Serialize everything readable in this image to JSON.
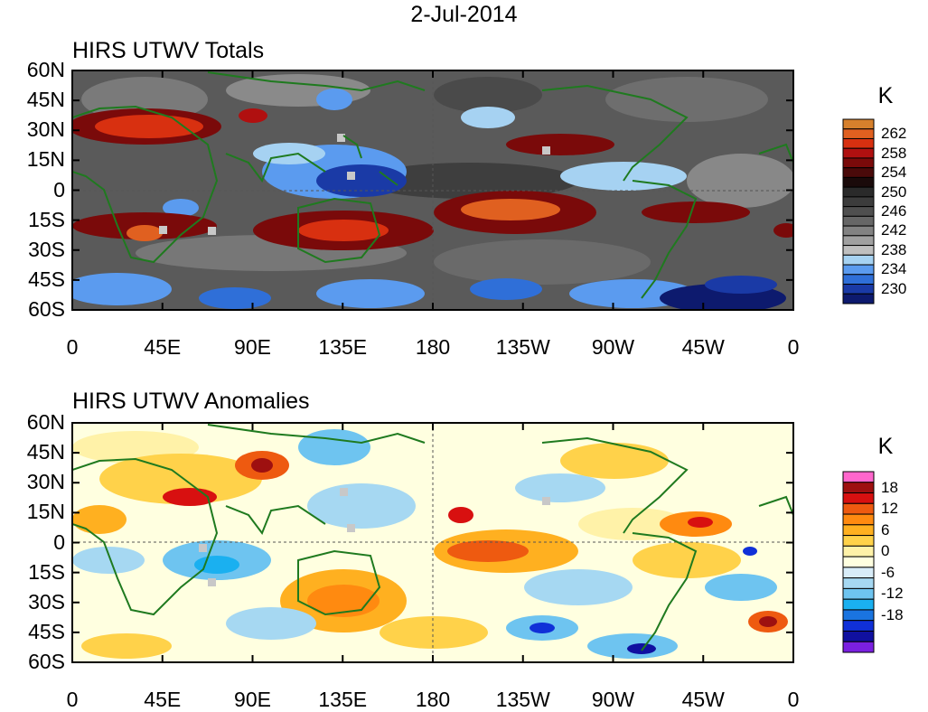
{
  "figure_title": "2-Jul-2014",
  "panels": [
    {
      "title": "HIRS UTWV Totals",
      "colorbar": {
        "unit": "K",
        "colors": [
          "#0d1a6e",
          "#1a3aa6",
          "#2f6fd8",
          "#5b9bef",
          "#a6d2f2",
          "#bfbfbf",
          "#a0a0a0",
          "#828282",
          "#666666",
          "#4f4f4f",
          "#3c3c3c",
          "#2a2a2a",
          "#1a0a0a",
          "#4a0a0a",
          "#7a0a0a",
          "#b01010",
          "#d83010",
          "#e06020",
          "#d6802c"
        ],
        "labels": [
          "262",
          "258",
          "254",
          "250",
          "246",
          "242",
          "238",
          "234",
          "230"
        ]
      }
    },
    {
      "title": "HIRS UTWV Anomalies",
      "colorbar": {
        "unit": "K",
        "colors": [
          "#7a20e0",
          "#1010a0",
          "#1030d8",
          "#1a74e0",
          "#1ab0f0",
          "#6ec4f0",
          "#a6d8f2",
          "#d8ecf8",
          "#ffffe0",
          "#fff2a8",
          "#ffd24a",
          "#ffb020",
          "#ff8a10",
          "#ee5a10",
          "#d81010",
          "#9e1010",
          "#ff66cc"
        ],
        "labels": [
          "18",
          "12",
          "6",
          "0",
          "-6",
          "-12",
          "-18"
        ]
      }
    }
  ],
  "axes": {
    "y_ticks": [
      "60N",
      "45N",
      "30N",
      "15N",
      "0",
      "15S",
      "30S",
      "45S",
      "60S"
    ],
    "x_ticks": [
      "0",
      "45E",
      "90E",
      "135E",
      "180",
      "135W",
      "90W",
      "45W",
      "0"
    ]
  },
  "map_colors": {
    "coast": "#1f7a1f",
    "missing": "#c8c8c8"
  }
}
